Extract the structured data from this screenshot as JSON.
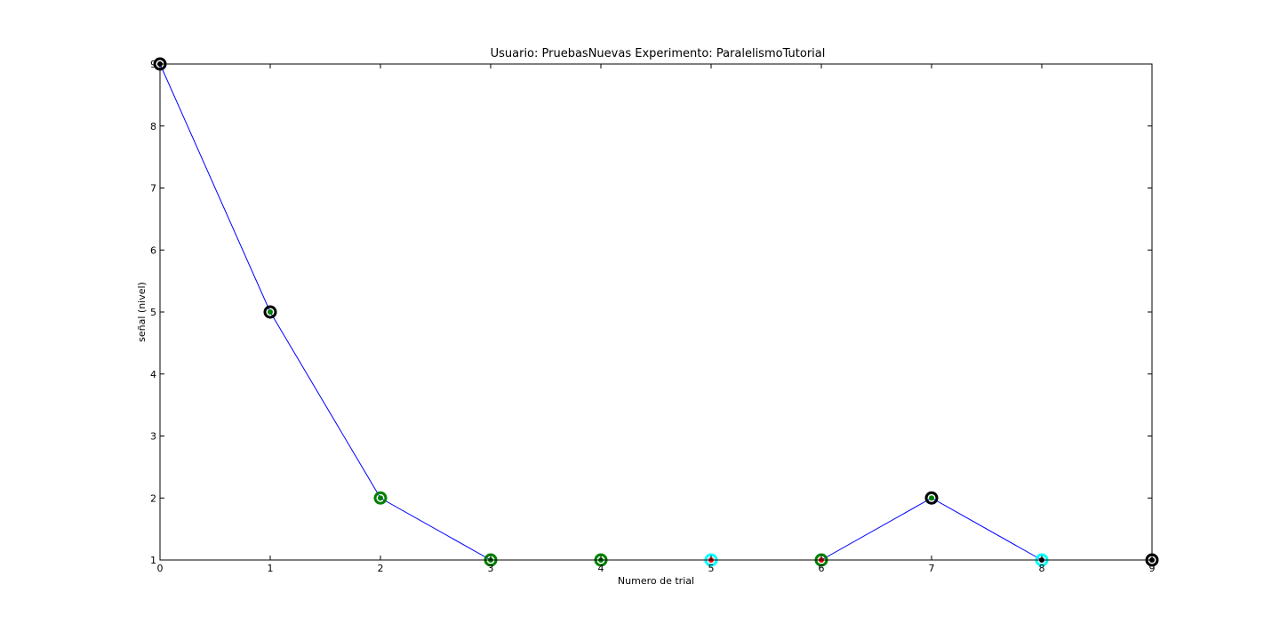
{
  "chart_data": {
    "type": "line",
    "title": "Usuario: PruebasNuevas Experimento: ParalelismoTutorial",
    "xlabel": "Numero de trial",
    "ylabel": "señal (nivel)",
    "xlim": [
      0,
      9
    ],
    "ylim": [
      1,
      9
    ],
    "xticks": [
      "0",
      "1",
      "2",
      "3",
      "4",
      "5",
      "6",
      "7",
      "8",
      "9"
    ],
    "yticks": [
      "1",
      "2",
      "3",
      "4",
      "5",
      "6",
      "7",
      "8",
      "9"
    ],
    "grid": false,
    "legend": "none",
    "series": [
      {
        "x": [
          0,
          1,
          2,
          3,
          4,
          5,
          6,
          7,
          8,
          9
        ],
        "y": [
          9,
          5,
          2,
          1,
          1,
          1,
          1,
          2,
          1,
          1
        ],
        "line_color": "#0000ff",
        "marker_colors": [
          "#000000",
          "#000000",
          "#008000",
          "#008000",
          "#008000",
          "#00ffff",
          "#008000",
          "#000000",
          "#00ffff",
          "#000000"
        ],
        "inner_dot_colors": [
          "#000000",
          "#008000",
          "#008000",
          "#008000",
          "#008000",
          "#ff0000",
          "#ff0000",
          "#008000",
          "#000000",
          "#000000"
        ]
      }
    ]
  }
}
